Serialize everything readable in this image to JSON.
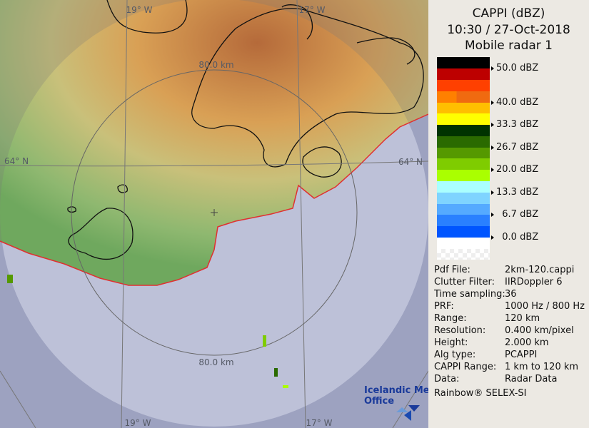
{
  "header": {
    "line1": "CAPPI (dBZ)",
    "line2": "10:30 / 27-Oct-2018",
    "line3": "Mobile radar 1"
  },
  "legend": {
    "bins": [
      {
        "color": "#000000"
      },
      {
        "color": "#bd0000"
      },
      {
        "color": "#ff4000"
      },
      {
        "color": "#ff8000",
        "pattern": "hatched"
      },
      {
        "color": "#ffbf00"
      },
      {
        "color": "#ffff00"
      },
      {
        "color": "#003300"
      },
      {
        "color": "#2a6a00"
      },
      {
        "color": "#559900"
      },
      {
        "color": "#7fcc00"
      },
      {
        "color": "#aaff00"
      },
      {
        "color": "#aaffff"
      },
      {
        "color": "#7fd4ff"
      },
      {
        "color": "#55aaff"
      },
      {
        "color": "#2a80ff"
      },
      {
        "color": "#0055ff"
      },
      {
        "color": "#ffffff"
      },
      {
        "color": "#f4f4f4",
        "pattern": "checker"
      }
    ],
    "ticks": [
      "50.0 dBZ",
      "40.0 dBZ",
      "33.3 dBZ",
      "26.7 dBZ",
      "20.0 dBZ",
      "13.3 dBZ",
      "  6.7 dBZ",
      "  0.0 dBZ"
    ]
  },
  "info": [
    {
      "key": "Pdf File:",
      "value": "2km-120.cappi"
    },
    {
      "key": "Clutter Filter:",
      "value": "IIRDoppler 6"
    },
    {
      "key": "Time sampling:",
      "value": "36"
    },
    {
      "key": "PRF:",
      "value": "1000 Hz / 800 Hz"
    },
    {
      "key": "Range:",
      "value": "120 km"
    },
    {
      "key": "Resolution:",
      "value": "0.400 km/pixel"
    },
    {
      "key": "Height:",
      "value": "2.000 km"
    },
    {
      "key": "Alg type:",
      "value": "PCAPPI"
    },
    {
      "key": "CAPPI Range:",
      "value": "1 km to 120 km"
    },
    {
      "key": "Data:",
      "value": "Radar Data"
    }
  ],
  "footer": "Rainbow® SELEX-SI",
  "map": {
    "grid_labels": {
      "top_left": "19° W",
      "top_right": "17° W",
      "bottom_left": "19° W",
      "bottom_right": "17° W",
      "left": "64° N",
      "right": "64° N"
    },
    "range_ring_top": "80.0 km",
    "range_ring_bottom": "80.0 km",
    "logo": "Icelandic Met Office",
    "colors": {
      "sea_in_range": "#d4daf8",
      "sea_out_range": "#aab0d8",
      "coastline_echo": "#e03030"
    }
  }
}
